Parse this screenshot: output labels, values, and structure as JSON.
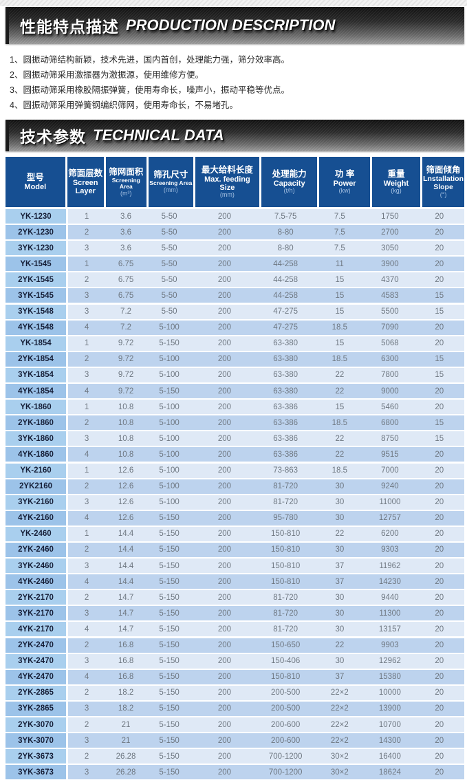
{
  "banners": {
    "description": {
      "cn": "性能特点描述",
      "en": "PRODUCTION DESCRIPTION"
    },
    "technical": {
      "cn": "技术参数",
      "en": "TECHNICAL DATA"
    }
  },
  "description_list": [
    "1、圆振动筛结构新颖，技术先进，国内首创，处理能力强，筛分效率高。",
    "2、圆振动筛采用激振器为激振源，使用维修方便。",
    "3、圆振动筛采用橡胶隔振弹簧，使用寿命长，噪声小，振动平稳等优点。",
    "4、圆振动筛采用弹簧钢编织筛网，使用寿命长，不易堵孔。"
  ],
  "table": {
    "columns": [
      {
        "cn": "型号",
        "en": "Model",
        "unit": ""
      },
      {
        "cn": "筛面层数",
        "en": "Screen Layer",
        "unit": ""
      },
      {
        "cn": "筛网面积",
        "en": "Screening Area",
        "unit": "(m³)"
      },
      {
        "cn": "筛孔尺寸",
        "en": "Screening Area",
        "unit": "(mm)"
      },
      {
        "cn": "最大给料长度",
        "en": "Max. feeding Size",
        "unit": "(mm)"
      },
      {
        "cn": "处理能力",
        "en": "Capacity",
        "unit": "(t/h)"
      },
      {
        "cn": "功 率",
        "en": "Power",
        "unit": "(kw)"
      },
      {
        "cn": "重量",
        "en": "Weight",
        "unit": "(kg)"
      },
      {
        "cn": "筛面倾角",
        "en": "Lnstallation Slope",
        "unit": "(°)"
      }
    ],
    "rows": [
      [
        "YK-1230",
        "1",
        "3.6",
        "5-50",
        "200",
        "7.5-75",
        "7.5",
        "1750",
        "20"
      ],
      [
        "2YK-1230",
        "2",
        "3.6",
        "5-50",
        "200",
        "8-80",
        "7.5",
        "2700",
        "20"
      ],
      [
        "3YK-1230",
        "3",
        "3.6",
        "5-50",
        "200",
        "8-80",
        "7.5",
        "3050",
        "20"
      ],
      [
        "YK-1545",
        "1",
        "6.75",
        "5-50",
        "200",
        "44-258",
        "11",
        "3900",
        "20"
      ],
      [
        "2YK-1545",
        "2",
        "6.75",
        "5-50",
        "200",
        "44-258",
        "15",
        "4370",
        "20"
      ],
      [
        "3YK-1545",
        "3",
        "6.75",
        "5-50",
        "200",
        "44-258",
        "15",
        "4583",
        "15"
      ],
      [
        "3YK-1548",
        "3",
        "7.2",
        "5-50",
        "200",
        "47-275",
        "15",
        "5500",
        "15"
      ],
      [
        "4YK-1548",
        "4",
        "7.2",
        "5-100",
        "200",
        "47-275",
        "18.5",
        "7090",
        "20"
      ],
      [
        "YK-1854",
        "1",
        "9.72",
        "5-150",
        "200",
        "63-380",
        "15",
        "5068",
        "20"
      ],
      [
        "2YK-1854",
        "2",
        "9.72",
        "5-100",
        "200",
        "63-380",
        "18.5",
        "6300",
        "15"
      ],
      [
        "3YK-1854",
        "3",
        "9.72",
        "5-100",
        "200",
        "63-380",
        "22",
        "7800",
        "15"
      ],
      [
        "4YK-1854",
        "4",
        "9.72",
        "5-150",
        "200",
        "63-380",
        "22",
        "9000",
        "20"
      ],
      [
        "YK-1860",
        "1",
        "10.8",
        "5-100",
        "200",
        "63-386",
        "15",
        "5460",
        "20"
      ],
      [
        "2YK-1860",
        "2",
        "10.8",
        "5-100",
        "200",
        "63-386",
        "18.5",
        "6800",
        "15"
      ],
      [
        "3YK-1860",
        "3",
        "10.8",
        "5-100",
        "200",
        "63-386",
        "22",
        "8750",
        "15"
      ],
      [
        "4YK-1860",
        "4",
        "10.8",
        "5-100",
        "200",
        "63-386",
        "22",
        "9515",
        "20"
      ],
      [
        "YK-2160",
        "1",
        "12.6",
        "5-100",
        "200",
        "73-863",
        "18.5",
        "7000",
        "20"
      ],
      [
        "2YK2160",
        "2",
        "12.6",
        "5-100",
        "200",
        "81-720",
        "30",
        "9240",
        "20"
      ],
      [
        "3YK-2160",
        "3",
        "12.6",
        "5-100",
        "200",
        "81-720",
        "30",
        "11000",
        "20"
      ],
      [
        "4YK-2160",
        "4",
        "12.6",
        "5-150",
        "200",
        "95-780",
        "30",
        "12757",
        "20"
      ],
      [
        "YK-2460",
        "1",
        "14.4",
        "5-150",
        "200",
        "150-810",
        "22",
        "6200",
        "20"
      ],
      [
        "2YK-2460",
        "2",
        "14.4",
        "5-150",
        "200",
        "150-810",
        "30",
        "9303",
        "20"
      ],
      [
        "3YK-2460",
        "3",
        "14.4",
        "5-150",
        "200",
        "150-810",
        "37",
        "11962",
        "20"
      ],
      [
        "4YK-2460",
        "4",
        "14.4",
        "5-150",
        "200",
        "150-810",
        "37",
        "14230",
        "20"
      ],
      [
        "2YK-2170",
        "2",
        "14.7",
        "5-150",
        "200",
        "81-720",
        "30",
        "9440",
        "20"
      ],
      [
        "3YK-2170",
        "3",
        "14.7",
        "5-150",
        "200",
        "81-720",
        "30",
        "11300",
        "20"
      ],
      [
        "4YK-2170",
        "4",
        "14.7",
        "5-150",
        "200",
        "81-720",
        "30",
        "13157",
        "20"
      ],
      [
        "2YK-2470",
        "2",
        "16.8",
        "5-150",
        "200",
        "150-650",
        "22",
        "9903",
        "20"
      ],
      [
        "3YK-2470",
        "3",
        "16.8",
        "5-150",
        "200",
        "150-406",
        "30",
        "12962",
        "20"
      ],
      [
        "4YK-2470",
        "4",
        "16.8",
        "5-150",
        "200",
        "150-810",
        "37",
        "15380",
        "20"
      ],
      [
        "2YK-2865",
        "2",
        "18.2",
        "5-150",
        "200",
        "200-500",
        "22×2",
        "10000",
        "20"
      ],
      [
        "3YK-2865",
        "3",
        "18.2",
        "5-150",
        "200",
        "200-500",
        "22×2",
        "13900",
        "20"
      ],
      [
        "2YK-3070",
        "2",
        "21",
        "5-150",
        "200",
        "200-600",
        "22×2",
        "10700",
        "20"
      ],
      [
        "3YK-3070",
        "3",
        "21",
        "5-150",
        "200",
        "200-600",
        "22×2",
        "14300",
        "20"
      ],
      [
        "2YK-3673",
        "2",
        "26.28",
        "5-150",
        "200",
        "700-1200",
        "30×2",
        "16400",
        "20"
      ],
      [
        "3YK-3673",
        "3",
        "26.28",
        "5-150",
        "200",
        "700-1200",
        "30×2",
        "18624",
        "20"
      ]
    ]
  },
  "colors": {
    "header_blue": "#164f92",
    "row_light": "#dfe9f6",
    "row_dark": "#bdd3ee",
    "model_light": "#a9cfee",
    "model_dark": "#9cc3e9",
    "banner_dark": "#121212",
    "banner_light": "#a2a2a2"
  }
}
